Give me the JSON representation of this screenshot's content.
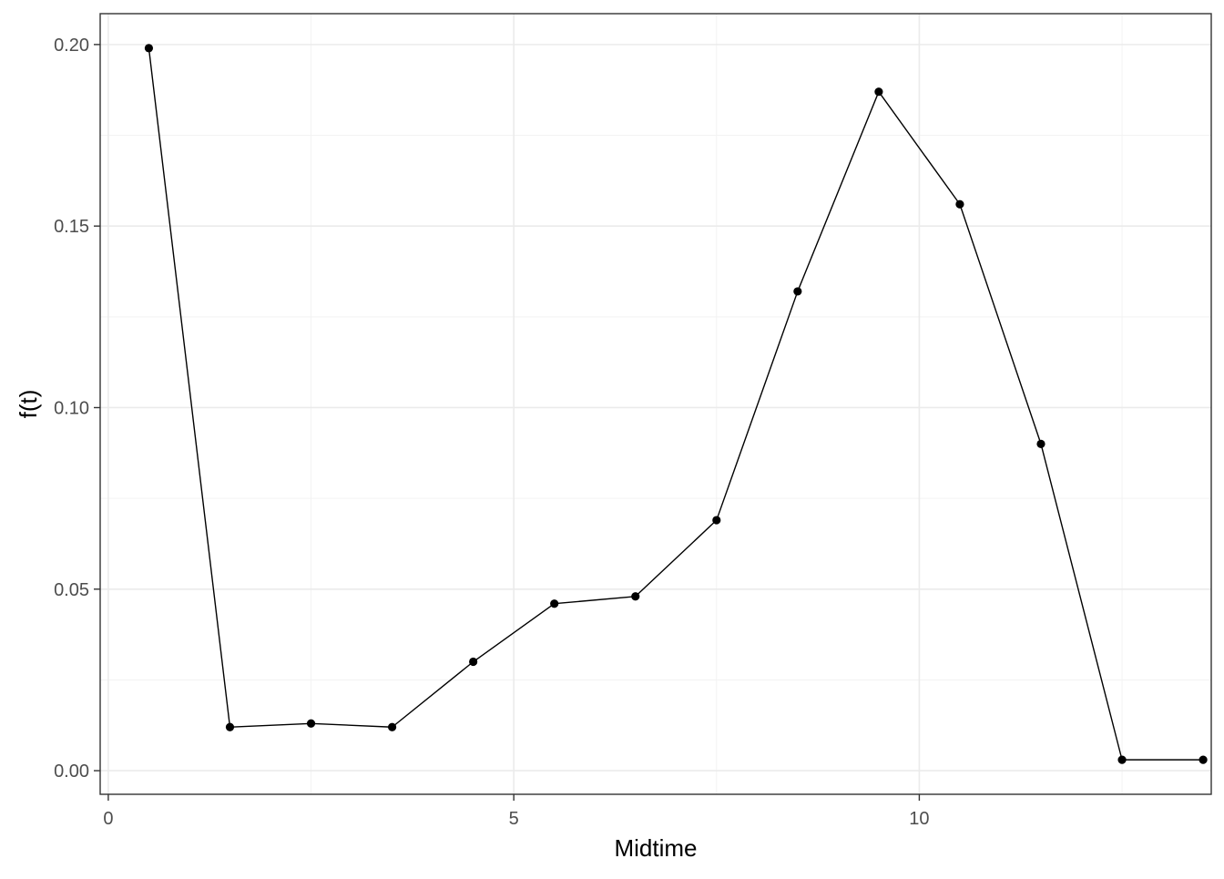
{
  "chart_data": {
    "type": "line",
    "title": "",
    "xlabel": "Midtime",
    "ylabel": "f(t)",
    "xlim": [
      -0.1,
      13.6
    ],
    "ylim": [
      -0.0065,
      0.2085
    ],
    "x_ticks": [
      0,
      5,
      10
    ],
    "x_tick_labels": [
      "0",
      "5",
      "10"
    ],
    "y_ticks": [
      0.0,
      0.05,
      0.1,
      0.15,
      0.2
    ],
    "y_tick_labels": [
      "0.00",
      "0.05",
      "0.10",
      "0.15",
      "0.20"
    ],
    "grid": true,
    "legend": "none",
    "series": [
      {
        "x": [
          0.5,
          1.5,
          2.5,
          3.5,
          4.5,
          5.5,
          6.5,
          7.5,
          8.5,
          9.5,
          10.5,
          11.5,
          12.5,
          13.5
        ],
        "y": [
          0.199,
          0.012,
          0.013,
          0.012,
          0.03,
          0.046,
          0.048,
          0.069,
          0.132,
          0.187,
          0.156,
          0.09,
          0.003,
          0.003
        ],
        "color": "#000000"
      }
    ],
    "colors": {
      "background": "#ffffff",
      "grid_major": "#ebebeb",
      "grid_minor": "#f3f3f3",
      "panel_border": "#333333",
      "line": "#000000",
      "point": "#000000",
      "tick_text": "#4d4d4d"
    }
  }
}
